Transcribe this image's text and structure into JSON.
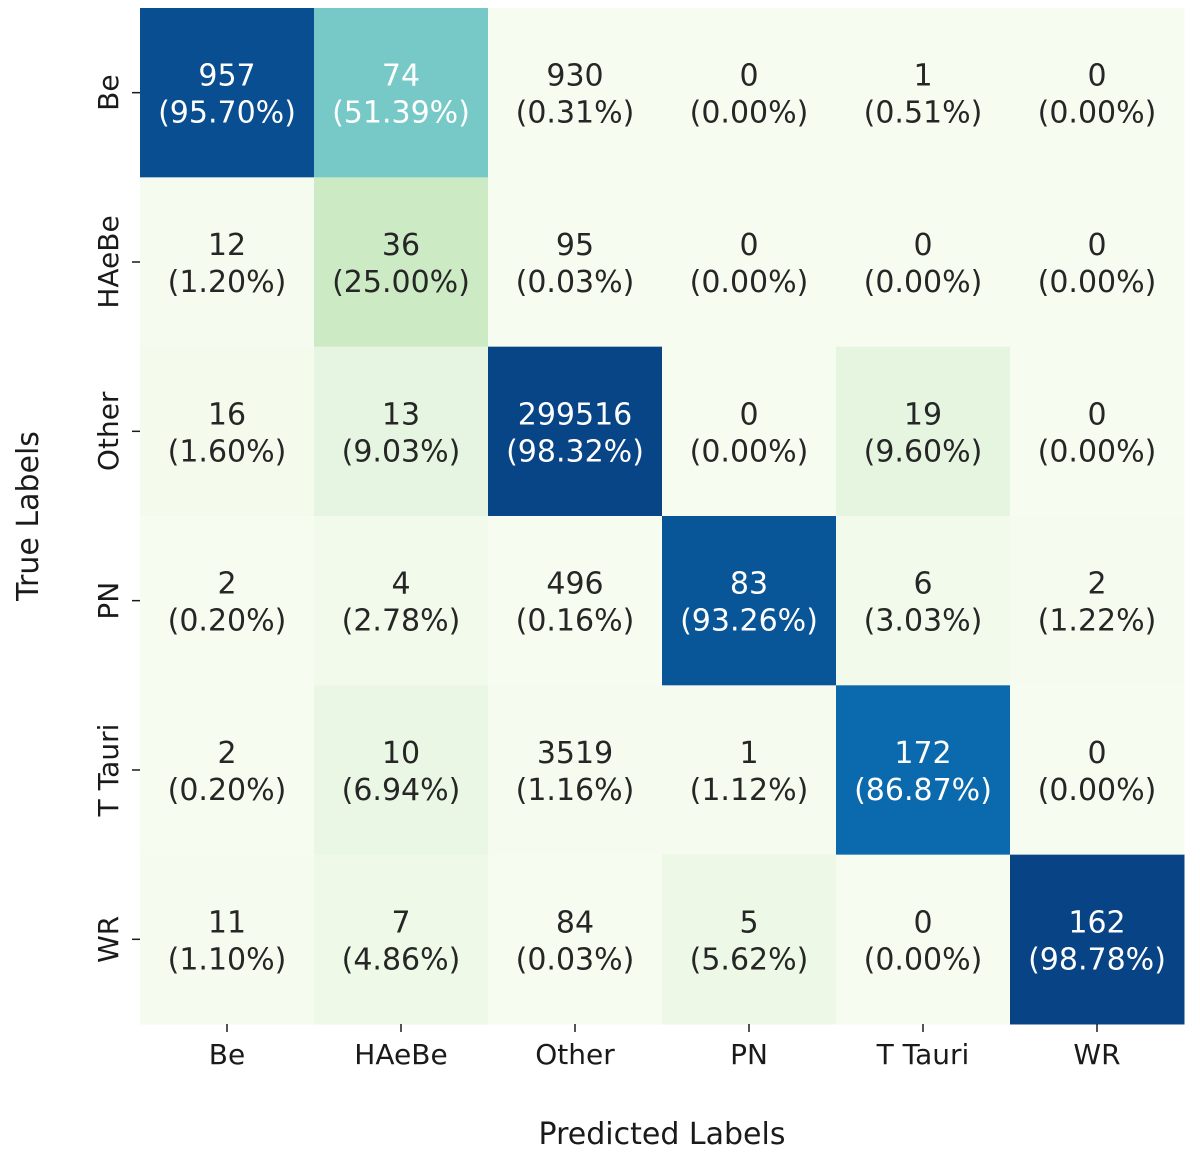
{
  "chart_data": {
    "type": "heatmap",
    "title": "",
    "xlabel": "Predicted Labels",
    "ylabel": "True Labels",
    "x_categories": [
      "Be",
      "HAeBe",
      "Other",
      "PN",
      "T Tauri",
      "WR"
    ],
    "y_categories": [
      "Be",
      "HAeBe",
      "Other",
      "PN",
      "T Tauri",
      "WR"
    ],
    "counts": [
      [
        957,
        74,
        930,
        0,
        1,
        0
      ],
      [
        12,
        36,
        95,
        0,
        0,
        0
      ],
      [
        16,
        13,
        299516,
        0,
        19,
        0
      ],
      [
        2,
        4,
        496,
        83,
        6,
        2
      ],
      [
        2,
        10,
        3519,
        1,
        172,
        0
      ],
      [
        11,
        7,
        84,
        5,
        0,
        162
      ]
    ],
    "percentages": [
      [
        "(95.70%)",
        "(51.39%)",
        "(0.31%)",
        "(0.00%)",
        "(0.51%)",
        "(0.00%)"
      ],
      [
        "(1.20%)",
        "(25.00%)",
        "(0.03%)",
        "(0.00%)",
        "(0.00%)",
        "(0.00%)"
      ],
      [
        "(1.60%)",
        "(9.03%)",
        "(98.32%)",
        "(0.00%)",
        "(9.60%)",
        "(0.00%)"
      ],
      [
        "(0.20%)",
        "(2.78%)",
        "(0.16%)",
        "(93.26%)",
        "(3.03%)",
        "(1.22%)"
      ],
      [
        "(0.20%)",
        "(6.94%)",
        "(1.16%)",
        "(1.12%)",
        "(86.87%)",
        "(0.00%)"
      ],
      [
        "(1.10%)",
        "(4.86%)",
        "(0.03%)",
        "(5.62%)",
        "(0.00%)",
        "(98.78%)"
      ]
    ],
    "percent_values": [
      [
        95.7,
        51.39,
        0.31,
        0.0,
        0.51,
        0.0
      ],
      [
        1.2,
        25.0,
        0.03,
        0.0,
        0.0,
        0.0
      ],
      [
        1.6,
        9.03,
        98.32,
        0.0,
        9.6,
        0.0
      ],
      [
        0.2,
        2.78,
        0.16,
        93.26,
        3.03,
        1.22
      ],
      [
        0.2,
        6.94,
        1.16,
        1.12,
        86.87,
        0.0
      ],
      [
        1.1,
        4.86,
        0.03,
        5.62,
        0.0,
        98.78
      ]
    ],
    "colormap": "GnBu",
    "color_range": [
      0,
      100
    ],
    "colorbar": false
  }
}
